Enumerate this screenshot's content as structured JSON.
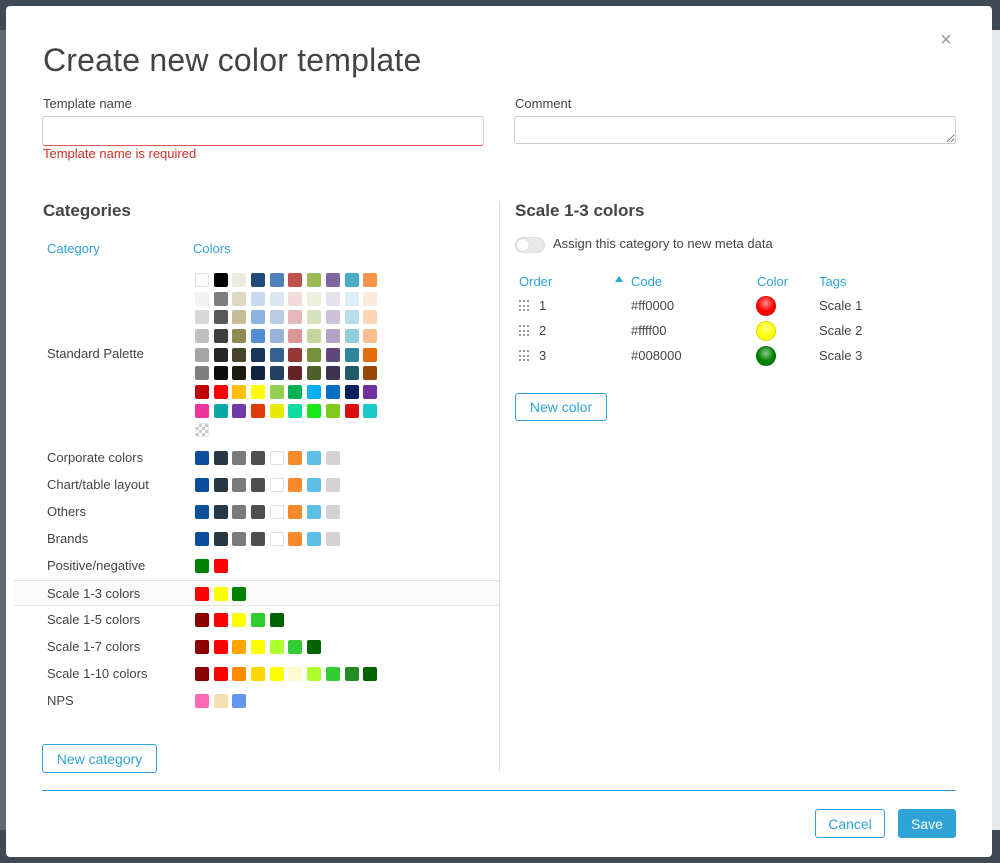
{
  "dialog": {
    "title": "Create new color template",
    "close_glyph": "×"
  },
  "form": {
    "template_name_label": "Template name",
    "template_name_value": "",
    "template_name_error": "Template name is required",
    "comment_label": "Comment",
    "comment_value": ""
  },
  "categories": {
    "title": "Categories",
    "col_category": "Category",
    "col_colors": "Colors",
    "standard_palette": {
      "name": "Standard Palette",
      "rows": [
        [
          "#ffffff",
          "#000000",
          "#eeece1",
          "#1f497d",
          "#4f81bd",
          "#c0504d",
          "#9bbb59",
          "#8064a2",
          "#4bacc6",
          "#f79646"
        ],
        [
          "#f2f2f2",
          "#7f7f7f",
          "#ddd9c3",
          "#c6d9f0",
          "#dbe5f1",
          "#f2dcdb",
          "#ebf1dd",
          "#e5e0ec",
          "#dbeef3",
          "#fdeada"
        ],
        [
          "#d8d8d8",
          "#595959",
          "#c4bd97",
          "#8db3e2",
          "#b8cce4",
          "#e5b9b7",
          "#d7e3bc",
          "#ccc1d9",
          "#b7dde8",
          "#fbd5b5"
        ],
        [
          "#bfbfbf",
          "#3f3f3f",
          "#938953",
          "#548dd4",
          "#95b3d7",
          "#d99694",
          "#c3d69b",
          "#b2a2c7",
          "#92cddc",
          "#fac08f"
        ],
        [
          "#a5a5a5",
          "#262626",
          "#494429",
          "#17365d",
          "#366092",
          "#953734",
          "#76923c",
          "#5f497a",
          "#31859b",
          "#e36c09"
        ],
        [
          "#7f7f7f",
          "#0c0c0c",
          "#1d1b10",
          "#0f243e",
          "#244061",
          "#632423",
          "#4f6128",
          "#3f3151",
          "#205867",
          "#974806"
        ],
        [
          "#c00000",
          "#ff0000",
          "#ffc000",
          "#ffff00",
          "#92d050",
          "#00b050",
          "#00b0f0",
          "#0070c0",
          "#002060",
          "#7030a0"
        ],
        [
          "#f0359a",
          "#0ba6a6",
          "#6d3aa7",
          "#e03a0b",
          "#e8e800",
          "#0ddca0",
          "#17e817",
          "#7fc91d",
          "#d90f0f",
          "#1cc9c9"
        ]
      ],
      "transparent_swatch": "transparent"
    },
    "items": [
      {
        "name": "Corporate colors",
        "colors": [
          "#0b4f9c",
          "#263746",
          "#7a7a7a",
          "#4f4f4f",
          "#ffffff",
          "#f5892b",
          "#5bbfe6",
          "#d3d3d3"
        ]
      },
      {
        "name": "Chart/table layout",
        "colors": [
          "#0b4f9c",
          "#263746",
          "#7a7a7a",
          "#4f4f4f",
          "#ffffff",
          "#f5892b",
          "#5bbfe6",
          "#d3d3d3"
        ]
      },
      {
        "name": "Others",
        "colors": [
          "#0b4f9c",
          "#263746",
          "#7a7a7a",
          "#4f4f4f",
          "#ffffff",
          "#f5892b",
          "#5bbfe6",
          "#d3d3d3"
        ]
      },
      {
        "name": "Brands",
        "colors": [
          "#0b4f9c",
          "#263746",
          "#7a7a7a",
          "#4f4f4f",
          "#ffffff",
          "#f5892b",
          "#5bbfe6",
          "#d3d3d3"
        ]
      },
      {
        "name": "Positive/negative",
        "colors": [
          "#008000",
          "#ff0000"
        ]
      },
      {
        "name": "Scale 1-3 colors",
        "colors": [
          "#ff0000",
          "#ffff00",
          "#008000"
        ],
        "selected": true
      },
      {
        "name": "Scale 1-5 colors",
        "colors": [
          "#8b0000",
          "#ff0000",
          "#ffff00",
          "#32cd32",
          "#006400"
        ]
      },
      {
        "name": "Scale 1-7 colors",
        "colors": [
          "#8b0000",
          "#ff0000",
          "#ffa500",
          "#ffff00",
          "#adff2f",
          "#32cd32",
          "#006400"
        ]
      },
      {
        "name": "Scale 1-10 colors",
        "colors": [
          "#8b0000",
          "#ff0000",
          "#ff8c00",
          "#ffd700",
          "#ffff00",
          "#fffacd",
          "#adff2f",
          "#32cd32",
          "#228b22",
          "#006400"
        ]
      },
      {
        "name": "NPS",
        "colors": [
          "#ff69b4",
          "#f5deb3",
          "#6495ed"
        ]
      }
    ],
    "new_category_label": "New category"
  },
  "detail": {
    "title": "Scale 1-3 colors",
    "assign_toggle_label": "Assign this category to new meta data",
    "assign_toggle_on": false,
    "columns": {
      "order": "Order",
      "code": "Code",
      "color": "Color",
      "tags": "Tags"
    },
    "rows": [
      {
        "order": "1",
        "code": "#ff0000",
        "color": "#ff0000",
        "tag": "Scale 1"
      },
      {
        "order": "2",
        "code": "#ffff00",
        "color": "#ffff00",
        "tag": "Scale 2"
      },
      {
        "order": "3",
        "code": "#008000",
        "color": "#008000",
        "tag": "Scale 3"
      }
    ],
    "new_color_label": "New color"
  },
  "footer": {
    "cancel_label": "Cancel",
    "save_label": "Save"
  },
  "colors": {
    "accent": "#2fa3d6",
    "error": "#c9302c"
  }
}
